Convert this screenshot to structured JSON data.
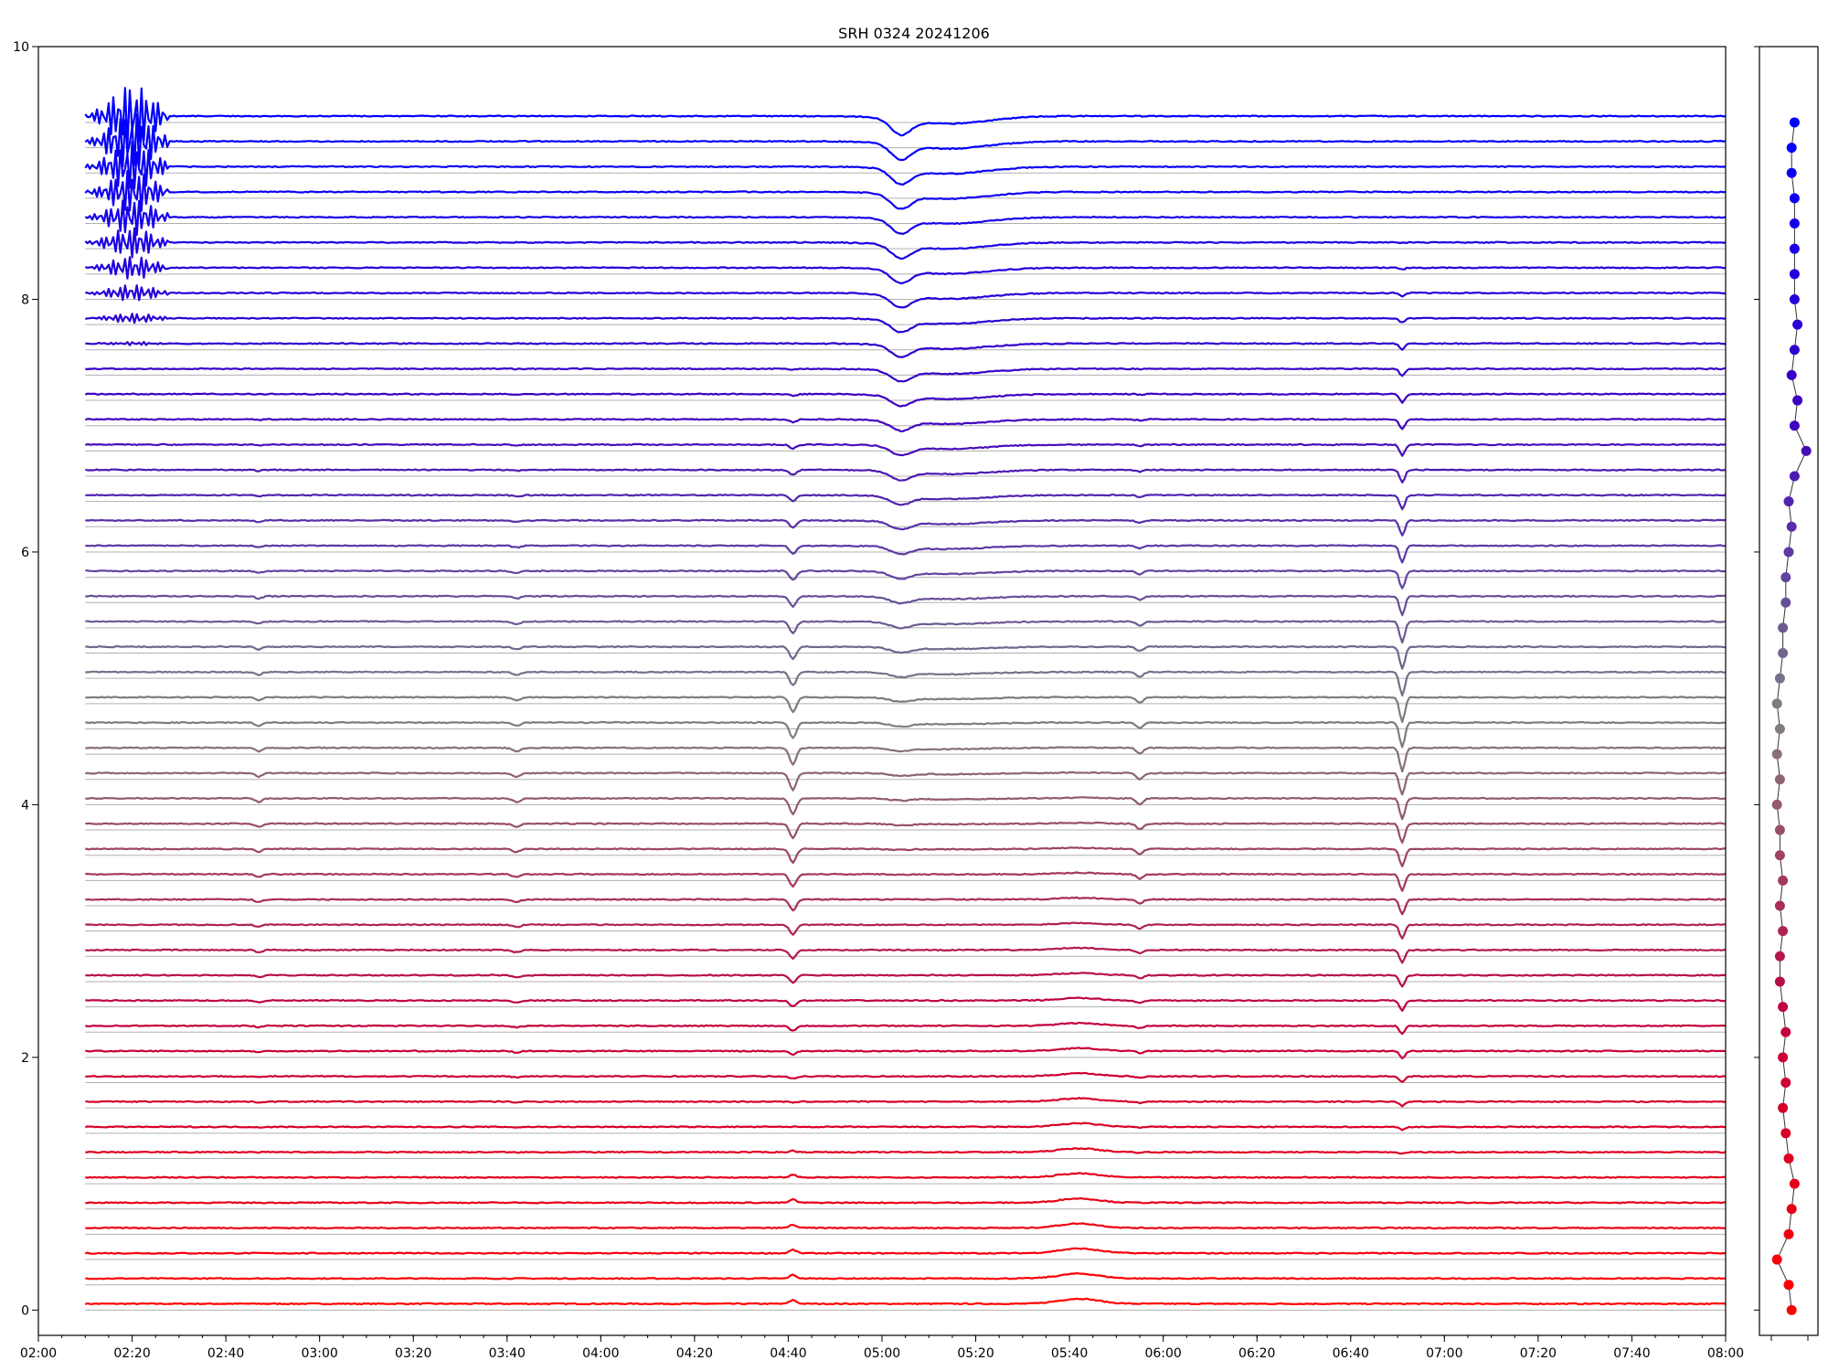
{
  "chart_data": {
    "type": "line",
    "title": "SRH 0324 20241206",
    "xlabel": "",
    "ylabel": "",
    "x_range": [
      "02:00",
      "08:00"
    ],
    "ylim": [
      -0.2,
      10
    ],
    "x_ticks": [
      "02:00",
      "02:20",
      "02:40",
      "03:00",
      "03:20",
      "03:40",
      "04:00",
      "04:20",
      "04:40",
      "05:00",
      "05:20",
      "05:40",
      "06:00",
      "06:20",
      "06:40",
      "07:00",
      "07:20",
      "07:40",
      "08:00"
    ],
    "y_ticks": [
      0,
      2,
      4,
      6,
      8,
      10
    ],
    "grid": false,
    "legend": "none",
    "n_traces": 48,
    "trace_offset_step": 0.2,
    "color_top": "#0000ff",
    "color_bottom": "#ff0000",
    "events": [
      {
        "time": "02:27",
        "kind": "large burst",
        "affects": "upper traces"
      },
      {
        "time": "02:47",
        "kind": "small dip"
      },
      {
        "time": "03:42",
        "kind": "small dip"
      },
      {
        "time": "04:41",
        "kind": "dip"
      },
      {
        "time": "05:04",
        "kind": "broad dip",
        "affects": "upper traces"
      },
      {
        "time": "05:55",
        "kind": "dip"
      },
      {
        "time": "06:51",
        "kind": "sharp dip",
        "affects": "middle traces"
      }
    ],
    "side_panel": {
      "type": "scatter",
      "y_values": [
        0,
        0.2,
        0.4,
        0.6,
        0.8,
        1.0,
        1.2,
        1.4,
        1.6,
        1.8,
        2.0,
        2.2,
        2.4,
        2.6,
        2.8,
        3.0,
        3.2,
        3.4,
        3.6,
        3.8,
        4.0,
        4.2,
        4.4,
        4.6,
        4.8,
        5.0,
        5.2,
        5.4,
        5.6,
        5.8,
        6.0,
        6.2,
        6.4,
        6.6,
        6.8,
        7.0,
        7.2,
        7.4,
        7.6,
        7.8,
        8.0,
        8.2,
        8.4,
        8.6,
        8.8,
        9.0,
        9.2,
        9.4
      ],
      "x_values": [
        0.55,
        0.5,
        0.3,
        0.5,
        0.55,
        0.6,
        0.5,
        0.45,
        0.4,
        0.45,
        0.4,
        0.45,
        0.4,
        0.35,
        0.35,
        0.4,
        0.35,
        0.4,
        0.35,
        0.35,
        0.3,
        0.35,
        0.3,
        0.35,
        0.3,
        0.35,
        0.4,
        0.4,
        0.45,
        0.45,
        0.5,
        0.55,
        0.5,
        0.6,
        0.8,
        0.6,
        0.65,
        0.55,
        0.6,
        0.65,
        0.6,
        0.6,
        0.6,
        0.6,
        0.6,
        0.55,
        0.55,
        0.6
      ]
    }
  }
}
